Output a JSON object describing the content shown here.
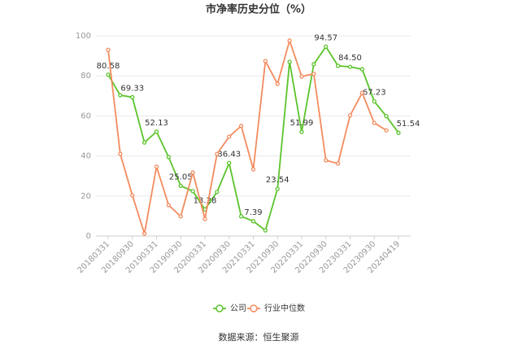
{
  "chart_data": {
    "type": "line",
    "title": "市净率历史分位（%）",
    "source": "数据来源：恒生聚源",
    "categories": [
      "20180331",
      null,
      "20180930",
      null,
      "20190331",
      null,
      "20190930",
      null,
      "20200331",
      null,
      "20200930",
      null,
      "20210331",
      null,
      "20210930",
      null,
      "20220331",
      null,
      "20220930",
      null,
      "20230331",
      null,
      "20230930",
      null,
      "20240419"
    ],
    "series": [
      {
        "name": "公司",
        "color": "#5ac42a",
        "values": [
          80.58,
          70.3,
          69.33,
          46.7,
          52.13,
          39.4,
          25.05,
          22.4,
          13.28,
          22,
          36.43,
          9.8,
          7.39,
          2.8,
          23.54,
          87,
          51.99,
          85.8,
          94.57,
          85,
          84.5,
          83.3,
          67.23,
          59.8,
          51.54
        ],
        "value_labels": [
          "80.58",
          null,
          "69.33",
          null,
          "52.13",
          null,
          "25.05",
          null,
          "13.28",
          null,
          "36.43",
          null,
          "7.39",
          null,
          "23.54",
          null,
          "51.99",
          null,
          "94.57",
          null,
          "84.50",
          null,
          "67.23",
          null,
          "51.54"
        ]
      },
      {
        "name": "行业中位数",
        "color": "#f38b5e",
        "values": [
          93,
          41,
          20.3,
          1.2,
          34.6,
          15.4,
          9.8,
          31.7,
          8.5,
          41,
          49.6,
          55,
          33.3,
          87.4,
          76,
          97.6,
          79.7,
          81,
          37.8,
          36.2,
          60.2,
          71.5,
          56.5,
          52.8,
          null
        ]
      }
    ],
    "ylim": [
      0,
      100
    ],
    "yticks": [
      0,
      20,
      40,
      60,
      80,
      100
    ],
    "grid": true,
    "legend": "bottom"
  }
}
